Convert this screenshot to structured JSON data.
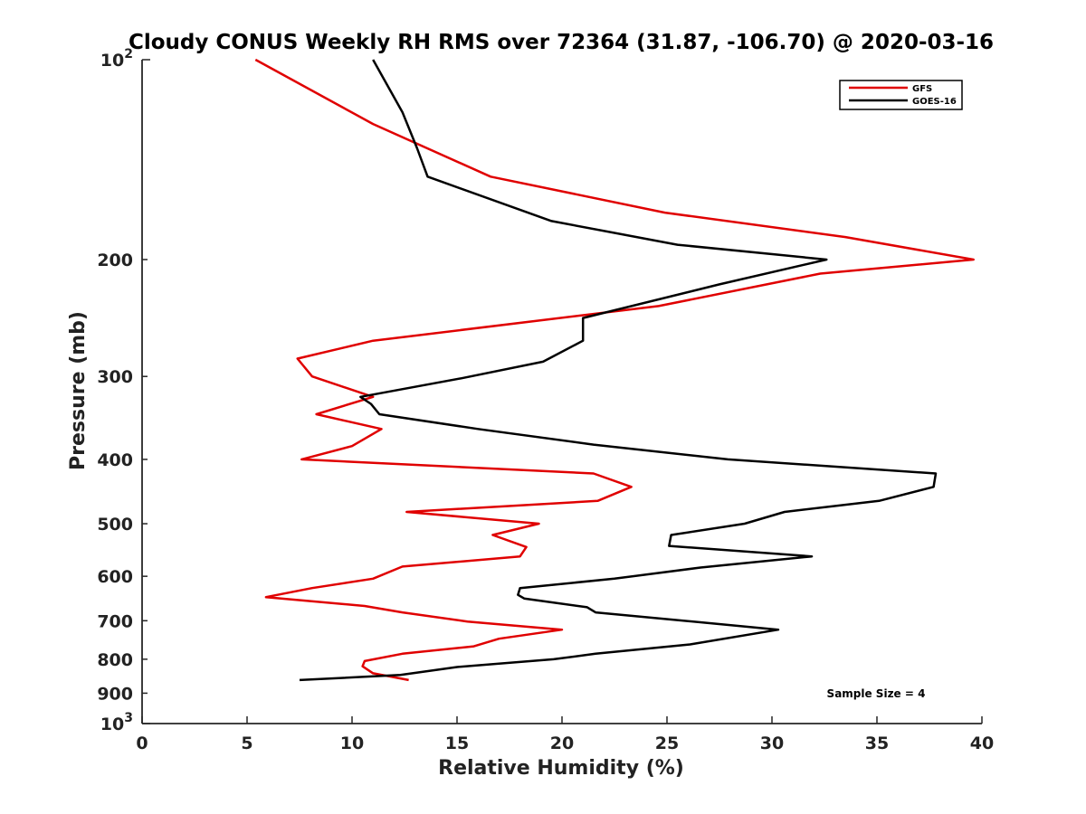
{
  "chart_data": {
    "type": "line",
    "title": "Cloudy CONUS Weekly RH RMS over 72364 (31.87, -106.70) @ 2020-03-16",
    "xlabel": "Relative Humidity (%)",
    "ylabel": "Pressure (mb)",
    "xlim": [
      0,
      40
    ],
    "ylim": [
      100,
      1000
    ],
    "yscale": "log",
    "y_reversed": true,
    "x_ticks": [
      0,
      5,
      10,
      15,
      20,
      25,
      30,
      35,
      40
    ],
    "y_ticks": [
      {
        "value": 100,
        "base": "10",
        "exp": "2"
      },
      {
        "value": 200,
        "label": "200"
      },
      {
        "value": 300,
        "label": "300"
      },
      {
        "value": 400,
        "label": "400"
      },
      {
        "value": 500,
        "label": "500"
      },
      {
        "value": 600,
        "label": "600"
      },
      {
        "value": 700,
        "label": "700"
      },
      {
        "value": 800,
        "label": "800"
      },
      {
        "value": 900,
        "label": "900"
      },
      {
        "value": 1000,
        "base": "10",
        "exp": "3"
      }
    ],
    "legend_position": "top-right",
    "annotation": "Sample Size = 4",
    "series": [
      {
        "name": "GFS",
        "color": "#e00000",
        "points": [
          [
            5.4,
            100
          ],
          [
            11.0,
            125
          ],
          [
            16.6,
            150
          ],
          [
            24.9,
            170
          ],
          [
            33.5,
            185
          ],
          [
            39.6,
            200
          ],
          [
            32.3,
            210
          ],
          [
            24.6,
            235
          ],
          [
            11.0,
            265
          ],
          [
            7.4,
            282
          ],
          [
            8.1,
            300
          ],
          [
            11.0,
            322
          ],
          [
            8.3,
            342
          ],
          [
            11.4,
            360
          ],
          [
            10.0,
            382
          ],
          [
            7.6,
            400
          ],
          [
            21.5,
            420
          ],
          [
            23.3,
            440
          ],
          [
            21.7,
            462
          ],
          [
            12.6,
            480
          ],
          [
            18.9,
            500
          ],
          [
            16.7,
            520
          ],
          [
            18.3,
            542
          ],
          [
            18.0,
            560
          ],
          [
            12.4,
            580
          ],
          [
            11.0,
            605
          ],
          [
            8.1,
            625
          ],
          [
            5.9,
            645
          ],
          [
            10.6,
            665
          ],
          [
            12.4,
            680
          ],
          [
            15.5,
            702
          ],
          [
            20.0,
            722
          ],
          [
            17.0,
            745
          ],
          [
            15.8,
            765
          ],
          [
            12.4,
            785
          ],
          [
            10.6,
            805
          ],
          [
            10.5,
            820
          ],
          [
            11.0,
            840
          ],
          [
            12.7,
            860
          ]
        ]
      },
      {
        "name": "GOES-16",
        "color": "#000000",
        "points": [
          [
            11.0,
            100
          ],
          [
            12.4,
            120
          ],
          [
            13.1,
            136
          ],
          [
            13.6,
            150
          ],
          [
            19.5,
            175
          ],
          [
            25.5,
            190
          ],
          [
            32.6,
            200
          ],
          [
            27.5,
            218
          ],
          [
            21.0,
            245
          ],
          [
            21.0,
            265
          ],
          [
            19.1,
            285
          ],
          [
            15.2,
            302
          ],
          [
            10.4,
            322
          ],
          [
            10.9,
            330
          ],
          [
            11.3,
            342
          ],
          [
            16.0,
            360
          ],
          [
            21.5,
            380
          ],
          [
            27.9,
            400
          ],
          [
            37.8,
            420
          ],
          [
            37.7,
            440
          ],
          [
            35.1,
            462
          ],
          [
            30.6,
            480
          ],
          [
            28.7,
            500
          ],
          [
            25.2,
            520
          ],
          [
            25.1,
            540
          ],
          [
            31.9,
            560
          ],
          [
            26.6,
            582
          ],
          [
            22.5,
            605
          ],
          [
            18.0,
            625
          ],
          [
            17.9,
            640
          ],
          [
            18.2,
            648
          ],
          [
            21.2,
            668
          ],
          [
            21.6,
            680
          ],
          [
            30.3,
            722
          ],
          [
            26.1,
            760
          ],
          [
            21.6,
            785
          ],
          [
            19.6,
            800
          ],
          [
            15.0,
            822
          ],
          [
            12.3,
            845
          ],
          [
            7.5,
            860
          ]
        ]
      }
    ]
  }
}
